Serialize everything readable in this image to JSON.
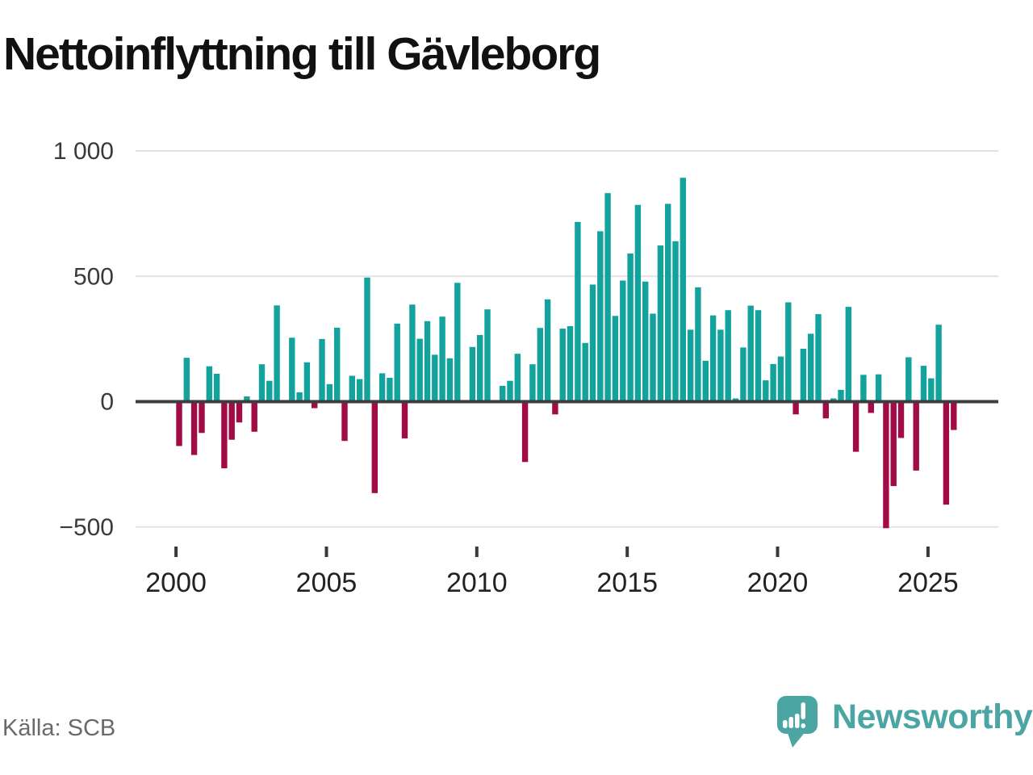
{
  "title": "Nettoinflyttning till Gävleborg",
  "source": "Källa: SCB",
  "brand": {
    "name": "Newsworthy"
  },
  "colors": {
    "positive_bar": "#13A39C",
    "negative_bar": "#A10C46",
    "gridline": "#e2e2e2",
    "zero_line": "#3d3d3d",
    "axis_text": "#3a3a3a",
    "x_axis_text": "#222222",
    "title_text": "#111111",
    "source_text": "#6a6a6a",
    "brand_teal": "#4BA5A2"
  },
  "chart_data": {
    "type": "bar",
    "title": "Nettoinflyttning till Gävleborg",
    "xlabel": "",
    "ylabel": "",
    "grid": true,
    "legend": false,
    "ylim": [
      -560,
      1050
    ],
    "y_ticks": [
      {
        "label": "1 000",
        "value": 1000
      },
      {
        "label": "500",
        "value": 500
      },
      {
        "label": "0",
        "value": 0
      },
      {
        "label": "−500",
        "value": -500
      }
    ],
    "x_ticks": [
      {
        "label": "2000",
        "quarter_index": 0
      },
      {
        "label": "2005",
        "quarter_index": 20
      },
      {
        "label": "2010",
        "quarter_index": 40
      },
      {
        "label": "2015",
        "quarter_index": 60
      },
      {
        "label": "2020",
        "quarter_index": 80
      },
      {
        "label": "2025",
        "quarter_index": 100
      }
    ],
    "x": [
      "2000 Q1",
      "2000 Q2",
      "2000 Q3",
      "2000 Q4",
      "2001 Q1",
      "2001 Q2",
      "2001 Q3",
      "2001 Q4",
      "2002 Q1",
      "2002 Q2",
      "2002 Q3",
      "2002 Q4",
      "2003 Q1",
      "2003 Q2",
      "2003 Q3",
      "2003 Q4",
      "2004 Q1",
      "2004 Q2",
      "2004 Q3",
      "2004 Q4",
      "2005 Q1",
      "2005 Q2",
      "2005 Q3",
      "2005 Q4",
      "2006 Q1",
      "2006 Q2",
      "2006 Q3",
      "2006 Q4",
      "2007 Q1",
      "2007 Q2",
      "2007 Q3",
      "2007 Q4",
      "2008 Q1",
      "2008 Q2",
      "2008 Q3",
      "2008 Q4",
      "2009 Q1",
      "2009 Q2",
      "2009 Q3",
      "2009 Q4",
      "2010 Q1",
      "2010 Q2",
      "2010 Q3",
      "2010 Q4",
      "2011 Q1",
      "2011 Q2",
      "2011 Q3",
      "2011 Q4",
      "2012 Q1",
      "2012 Q2",
      "2012 Q3",
      "2012 Q4",
      "2013 Q1",
      "2013 Q2",
      "2013 Q3",
      "2013 Q4",
      "2014 Q1",
      "2014 Q2",
      "2014 Q3",
      "2014 Q4",
      "2015 Q1",
      "2015 Q2",
      "2015 Q3",
      "2015 Q4",
      "2016 Q1",
      "2016 Q2",
      "2016 Q3",
      "2016 Q4",
      "2017 Q1",
      "2017 Q2",
      "2017 Q3",
      "2017 Q4",
      "2018 Q1",
      "2018 Q2",
      "2018 Q3",
      "2018 Q4",
      "2019 Q1",
      "2019 Q2",
      "2019 Q3",
      "2019 Q4",
      "2020 Q1",
      "2020 Q2",
      "2020 Q3",
      "2020 Q4",
      "2021 Q1",
      "2021 Q2",
      "2021 Q3",
      "2021 Q4",
      "2022 Q1",
      "2022 Q2",
      "2022 Q3",
      "2022 Q4",
      "2023 Q1",
      "2023 Q2",
      "2023 Q3",
      "2023 Q4",
      "2024 Q1",
      "2024 Q2",
      "2024 Q3",
      "2024 Q4",
      "2025 Q1",
      "2025 Q2",
      "2025 Q3",
      "2025 Q4"
    ],
    "values": [
      -177,
      175,
      -213,
      -125,
      141,
      111,
      -266,
      -152,
      -83,
      21,
      -120,
      149,
      83,
      384,
      0,
      255,
      37,
      157,
      -26,
      250,
      70,
      295,
      -157,
      103,
      90,
      495,
      -365,
      113,
      95,
      311,
      -147,
      387,
      251,
      321,
      187,
      339,
      173,
      474,
      0,
      218,
      266,
      368,
      0,
      63,
      83,
      191,
      -241,
      149,
      294,
      408,
      -51,
      291,
      301,
      717,
      234,
      467,
      680,
      832,
      342,
      483,
      591,
      785,
      479,
      351,
      623,
      789,
      640,
      893,
      287,
      456,
      163,
      344,
      287,
      365,
      13,
      216,
      383,
      365,
      85,
      150,
      180,
      396,
      -51,
      211,
      271,
      349,
      -67,
      13,
      47,
      378,
      -200,
      107,
      -45,
      109,
      -505,
      -337,
      -145,
      177,
      -275,
      143,
      93,
      307,
      -411,
      -113
    ]
  }
}
